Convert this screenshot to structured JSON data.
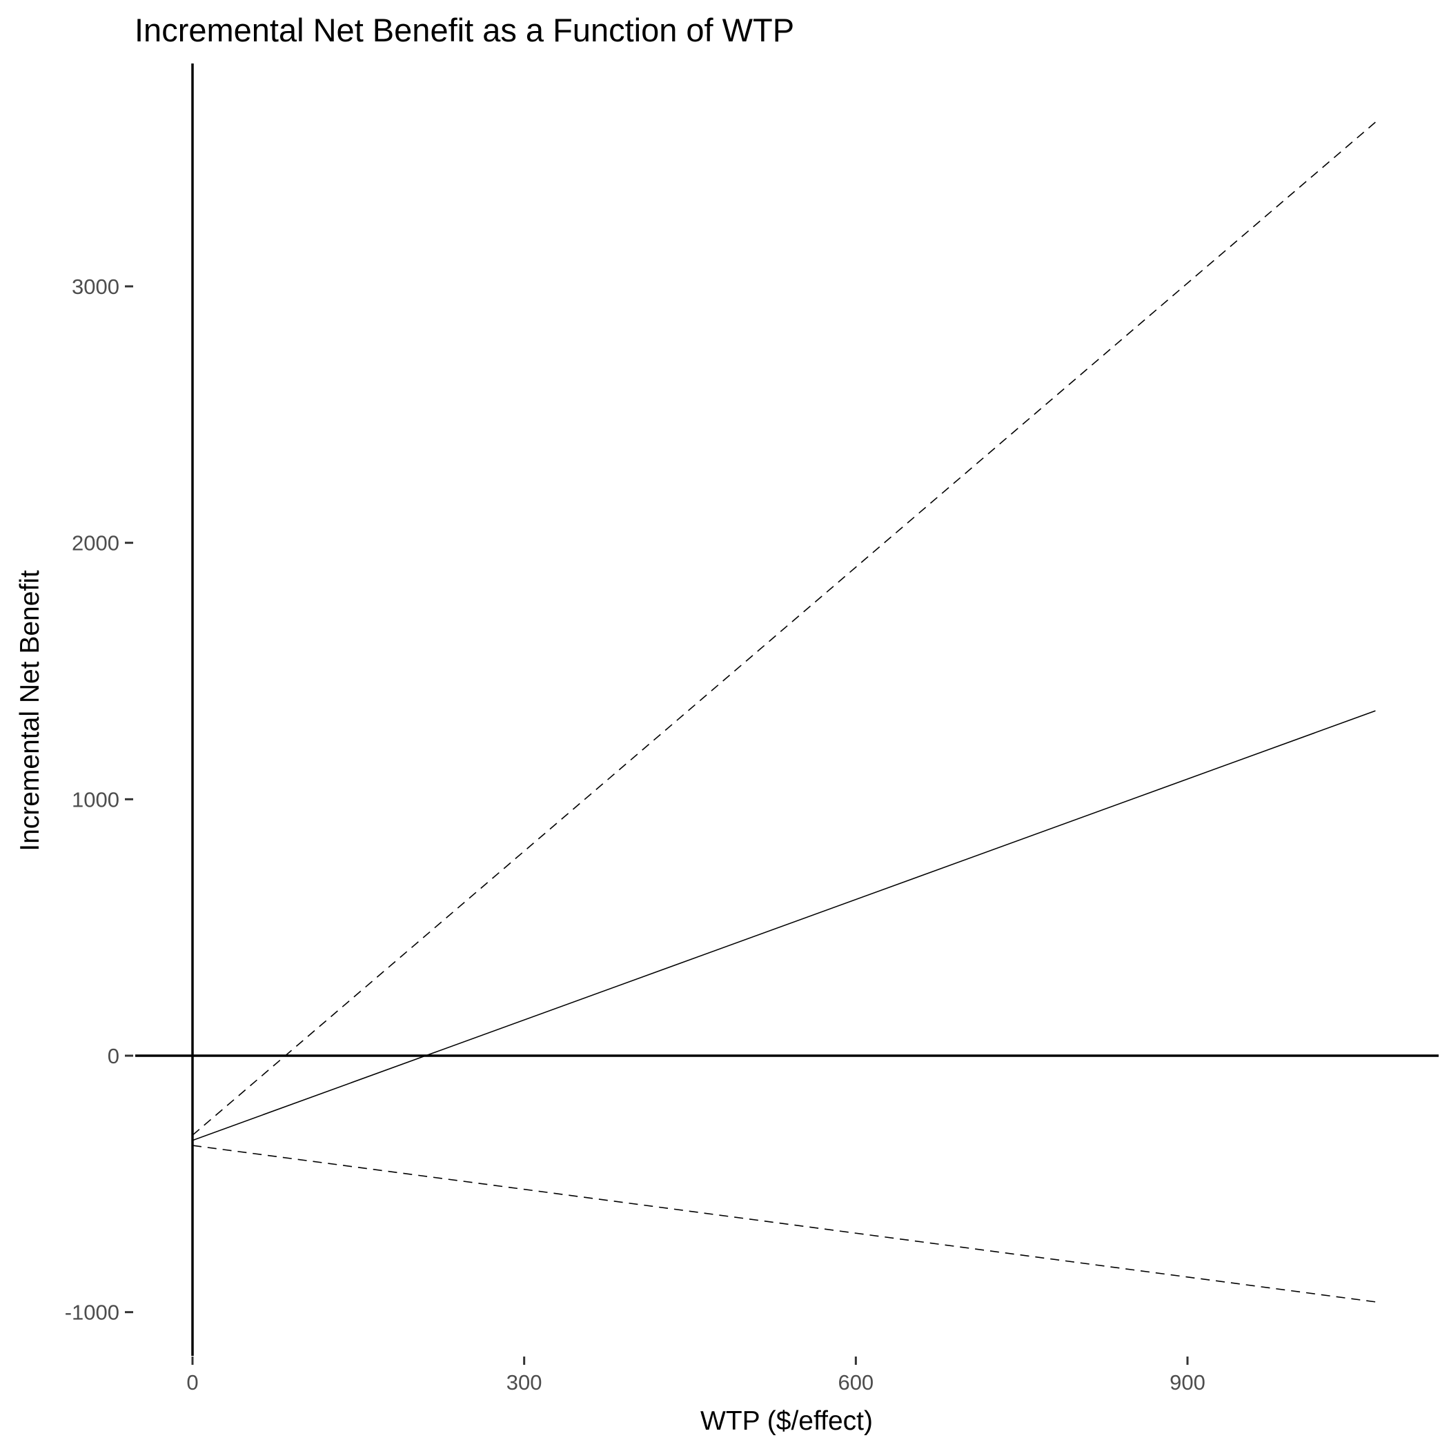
{
  "chart_data": {
    "type": "line",
    "title": "Incremental Net Benefit as a Function of WTP",
    "xlabel": "WTP ($/effect)",
    "ylabel": "Incremental Net Benefit",
    "xlim": [
      -10,
      1000
    ],
    "ylim": [
      -1200,
      3900
    ],
    "x_ticks": [
      0,
      300,
      600,
      900
    ],
    "y_ticks": [
      -1000,
      0,
      1000,
      2000,
      3000
    ],
    "grid": false,
    "legend": "none",
    "reference_lines": {
      "hline": 0,
      "vline": 0
    },
    "series": [
      {
        "style": "solid",
        "x": [
          0,
          1070
        ],
        "y": [
          -330,
          1345
        ]
      },
      {
        "style": "dashed",
        "x": [
          0,
          1070
        ],
        "y": [
          -310,
          3640
        ]
      },
      {
        "style": "dashed",
        "x": [
          0,
          1070
        ],
        "y": [
          -350,
          -960
        ]
      }
    ]
  }
}
